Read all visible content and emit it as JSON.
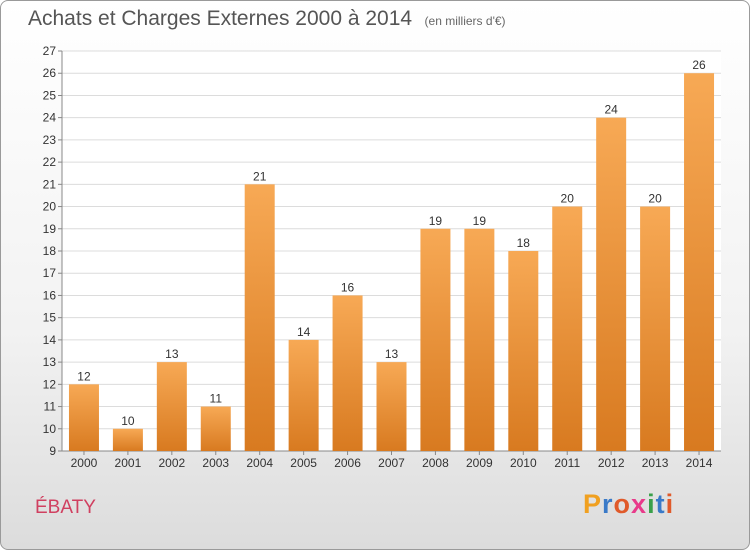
{
  "header": {
    "title": "Achats et Charges Externes 2000 à 2014",
    "subtitle": "(en milliers d'€)"
  },
  "footer": {
    "commune": "ÉBATY",
    "logo_text": "Proxiti",
    "logo_colors": [
      "#f0a020",
      "#3a7ac8",
      "#e05a2a",
      "#e83a8a",
      "#3aa04a",
      "#3a7ac8",
      "#e05a2a"
    ]
  },
  "colors": {
    "bar_top": "#f7a955",
    "bar_bottom": "#d87a20",
    "commune": "#d04060",
    "grid": "#dcdcdc",
    "axis_text": "#333333"
  },
  "chart_data": {
    "type": "bar",
    "categories": [
      "2000",
      "2001",
      "2002",
      "2003",
      "2004",
      "2005",
      "2006",
      "2007",
      "2008",
      "2009",
      "2010",
      "2011",
      "2012",
      "2013",
      "2014"
    ],
    "values": [
      12,
      10,
      13,
      11,
      21,
      14,
      16,
      13,
      19,
      19,
      18,
      20,
      24,
      20,
      26
    ],
    "title": "Achats et Charges Externes 2000 à 2014",
    "ylim": [
      9,
      27
    ],
    "yticks": [
      9,
      10,
      11,
      12,
      13,
      14,
      15,
      16,
      17,
      18,
      19,
      20,
      21,
      22,
      23,
      24,
      25,
      26,
      27
    ],
    "grid": true,
    "data_labels": true
  }
}
